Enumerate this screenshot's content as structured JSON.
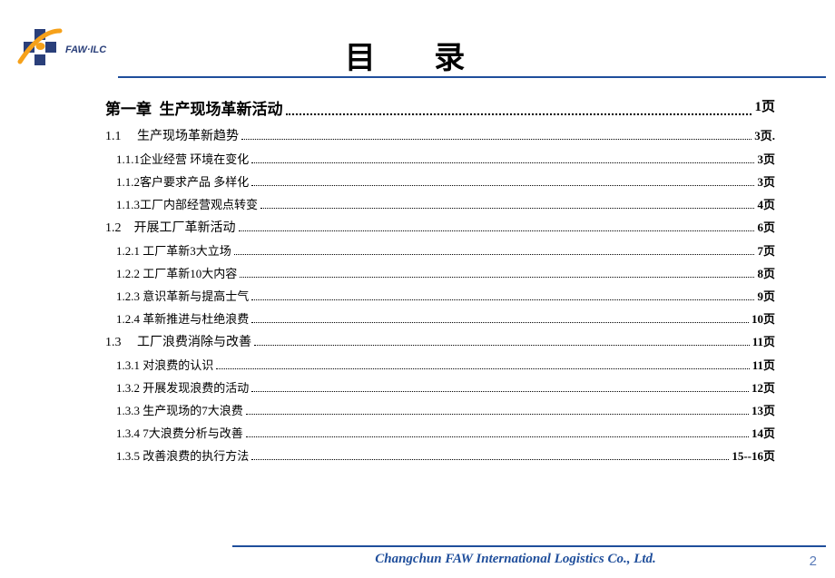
{
  "colors": {
    "rule": "#1f4e9b",
    "footerText": "#1f4e9b",
    "pageNum": "#5a7bb8",
    "logoOrange": "#f6a11a",
    "logoBlue": "#2a3f7a"
  },
  "header": {
    "title": "目 录"
  },
  "toc": {
    "chapter": {
      "label": "第一章  生产现场革新活动",
      "page": "1页"
    },
    "rows": [
      {
        "kind": "sect",
        "label": "1.1     生产现场革新趋势",
        "page": "3页."
      },
      {
        "kind": "sub",
        "label": "1.1.1企业经营 环境在变化",
        "page": "3页"
      },
      {
        "kind": "sub",
        "label": "1.1.2客户要求产品 多样化",
        "page": "3页"
      },
      {
        "kind": "sub",
        "label": "1.1.3工厂内部经营观点转变",
        "page": "4页"
      },
      {
        "kind": "sect",
        "label": "1.2    开展工厂革新活动",
        "page": "6页"
      },
      {
        "kind": "sub",
        "label": "1.2.1 工厂革新3大立场",
        "page": "7页"
      },
      {
        "kind": "sub",
        "label": "1.2.2 工厂革新10大内容",
        "page": "8页"
      },
      {
        "kind": "sub",
        "label": "1.2.3 意识革新与提高士气",
        "page": "9页"
      },
      {
        "kind": "sub",
        "label": "1.2.4 革新推进与杜绝浪费",
        "page": "10页"
      },
      {
        "kind": "sect",
        "label": "1.3     工厂浪费消除与改善",
        "page": "11页"
      },
      {
        "kind": "sub",
        "label": "1.3.1 对浪费的认识",
        "page": "11页"
      },
      {
        "kind": "sub",
        "label": "1.3.2 开展发现浪费的活动",
        "page": "12页"
      },
      {
        "kind": "sub",
        "label": "1.3.3 生产现场的7大浪费",
        "page": "13页"
      },
      {
        "kind": "sub",
        "label": "1.3.4 7大浪费分析与改善",
        "page": "14页"
      },
      {
        "kind": "sub",
        "label": "1.3.5 改善浪费的执行方法",
        "page": "15--16页"
      }
    ]
  },
  "footer": {
    "company": "Changchun  FAW  International Logistics Co., Ltd.",
    "pageNumber": "2"
  },
  "logo": {
    "text": "FAW·ILC"
  }
}
